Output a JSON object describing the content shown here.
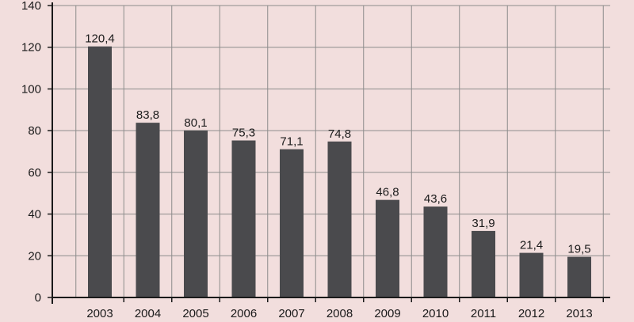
{
  "chart_data": {
    "type": "bar",
    "categories": [
      "2003",
      "2004",
      "2005",
      "2006",
      "2007",
      "2008",
      "2009",
      "2010",
      "2011",
      "2012",
      "2013"
    ],
    "values": [
      120.4,
      83.8,
      80.1,
      75.3,
      71.1,
      74.8,
      46.8,
      43.6,
      31.9,
      21.4,
      19.5
    ],
    "value_labels": [
      "120,4",
      "83,8",
      "80,1",
      "75,3",
      "71,1",
      "74,8",
      "46,8",
      "43,6",
      "31,9",
      "21,4",
      "19,5"
    ],
    "y_ticks": [
      "0",
      "20",
      "40",
      "60",
      "80",
      "100",
      "120",
      "140"
    ],
    "ylim": [
      0,
      140
    ],
    "title": "",
    "xlabel": "",
    "ylabel": "",
    "grid": true,
    "legend": "none",
    "colors": {
      "background": "#f2dedd",
      "bar": "#4a4a4d",
      "grid": "#8c8c8c",
      "axis": "#1a1a1a"
    }
  }
}
